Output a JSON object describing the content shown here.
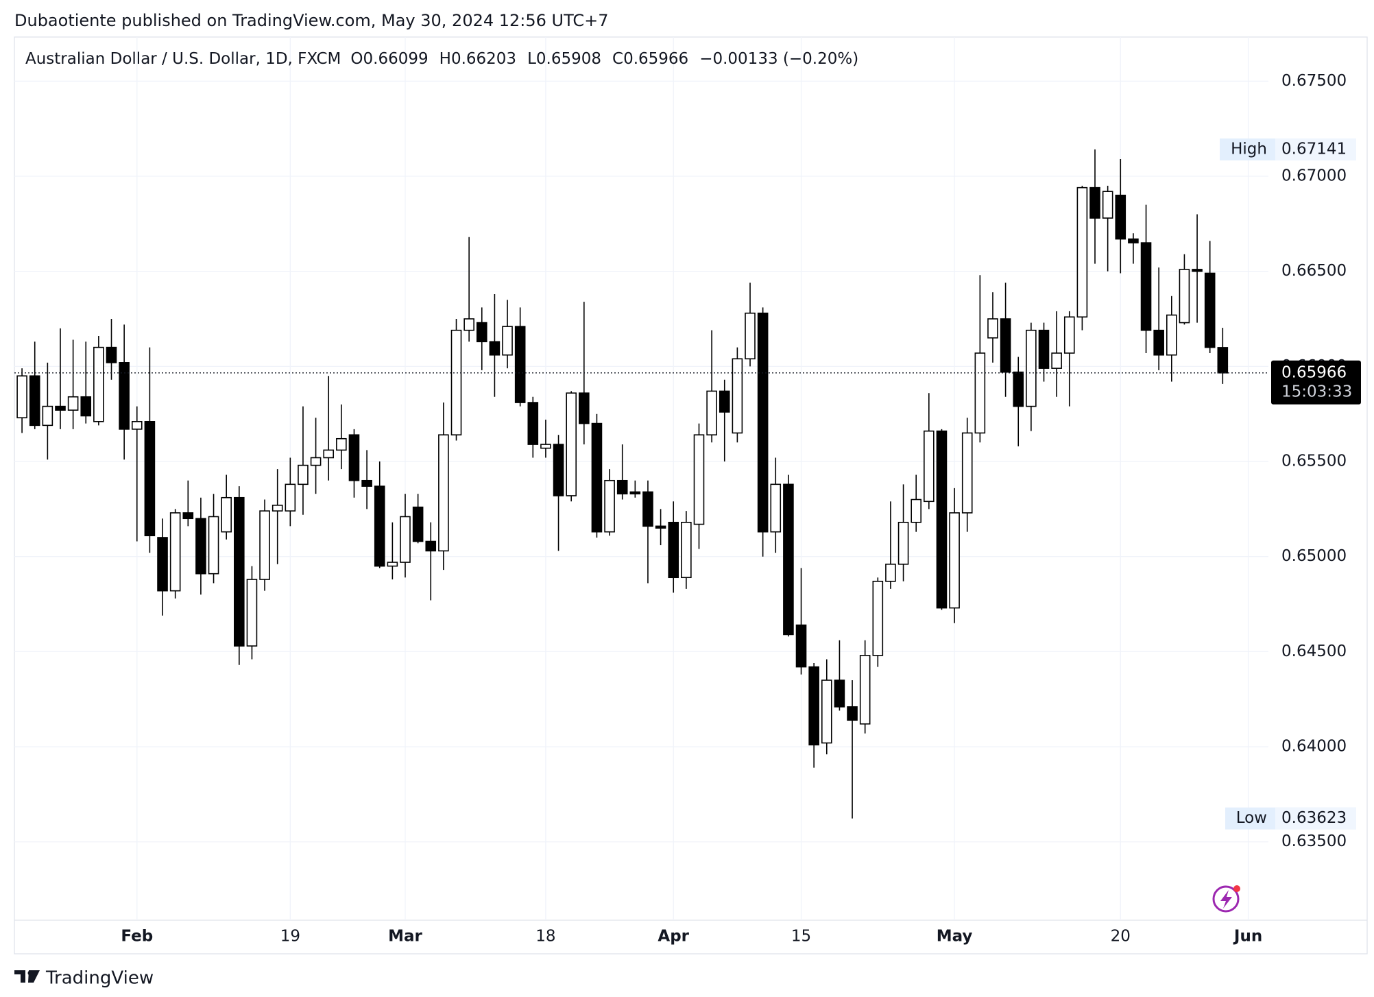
{
  "header": {
    "published": "Dubaotiente published on TradingView.com, May 30, 2024 12:56 UTC+7"
  },
  "legend": {
    "symbol": "Australian Dollar / U.S. Dollar, 1D, FXCM",
    "prefixes": [
      "O",
      "H",
      "L",
      "C"
    ],
    "change": "−0.00133 (−0.20%)"
  },
  "footer": {
    "brand": "TradingView"
  },
  "chart_data": {
    "type": "candlestick",
    "categories": [
      null,
      null,
      null,
      null,
      null,
      null,
      null,
      null,
      null,
      "Feb",
      null,
      null,
      null,
      null,
      null,
      null,
      null,
      null,
      null,
      null,
      null,
      "19",
      null,
      null,
      null,
      null,
      null,
      null,
      null,
      null,
      "Mar",
      null,
      null,
      null,
      null,
      null,
      null,
      null,
      null,
      null,
      null,
      "18",
      null,
      null,
      null,
      null,
      null,
      null,
      null,
      null,
      null,
      "Apr",
      null,
      null,
      null,
      null,
      null,
      null,
      null,
      null,
      null,
      "15",
      null,
      null,
      null,
      null,
      null,
      null,
      null,
      null,
      null,
      null,
      null,
      "May",
      null,
      null,
      null,
      null,
      null,
      null,
      null,
      null,
      null,
      null,
      null,
      null,
      "20",
      null,
      null,
      null,
      null,
      null,
      null,
      null,
      null,
      null,
      "Jun"
    ],
    "open": [
      0.6573,
      0.6595,
      0.6569,
      0.6579,
      0.6577,
      0.6584,
      0.6571,
      0.661,
      0.6602,
      0.6567,
      0.6571,
      0.651,
      0.6482,
      0.6523,
      0.652,
      0.6491,
      0.6513,
      0.6531,
      0.6453,
      0.6488,
      0.6524,
      0.6524,
      0.6538,
      0.6548,
      0.6552,
      0.6556,
      0.6564,
      0.654,
      0.6537,
      0.6495,
      0.6497,
      0.6526,
      0.6508,
      0.6503,
      0.6564,
      0.6619,
      0.6623,
      0.6613,
      0.6606,
      0.6621,
      0.6581,
      0.6557,
      0.6559,
      0.6532,
      0.6586,
      0.657,
      0.6513,
      0.654,
      0.6534,
      0.6534,
      0.6516,
      0.6518,
      0.6489,
      0.6517,
      0.6564,
      0.6587,
      0.6565,
      0.6604,
      0.6628,
      0.6513,
      0.6538,
      0.6464,
      0.6442,
      0.6402,
      0.6435,
      0.6421,
      0.6412,
      0.6448,
      0.6487,
      0.6496,
      0.6518,
      0.6529,
      0.6566,
      0.6473,
      0.6523,
      0.6565,
      0.6615,
      0.6625,
      0.6597,
      0.6579,
      0.6619,
      0.6599,
      0.6607,
      0.6626,
      0.6694,
      0.6678,
      0.669,
      0.6667,
      0.6665,
      0.6619,
      0.6606,
      0.6623,
      0.6651,
      0.6649,
      0.66099,
      null,
      null
    ],
    "high": [
      0.6599,
      0.6613,
      0.6602,
      0.662,
      0.6614,
      0.6613,
      0.6616,
      0.6625,
      0.6622,
      0.6579,
      0.661,
      0.652,
      0.6525,
      0.654,
      0.6531,
      0.6533,
      0.6543,
      0.6537,
      0.6495,
      0.653,
      0.6546,
      0.6552,
      0.6579,
      0.6573,
      0.6595,
      0.658,
      0.6567,
      0.6556,
      0.655,
      0.6518,
      0.6533,
      0.6533,
      0.6518,
      0.6581,
      0.6625,
      0.6668,
      0.6631,
      0.6638,
      0.6635,
      0.6631,
      0.6584,
      0.6572,
      0.6564,
      0.6587,
      0.6634,
      0.6575,
      0.6546,
      0.6559,
      0.654,
      0.654,
      0.6525,
      0.6529,
      0.6524,
      0.657,
      0.6619,
      0.6593,
      0.661,
      0.6644,
      0.6631,
      0.6552,
      0.6543,
      0.6494,
      0.6444,
      0.6446,
      0.6456,
      0.6435,
      0.6456,
      0.6489,
      0.6529,
      0.6538,
      0.6543,
      0.6586,
      0.6567,
      0.6536,
      0.6573,
      0.6648,
      0.6639,
      0.6644,
      0.6605,
      0.6623,
      0.6623,
      0.6629,
      0.6629,
      0.6695,
      0.67141,
      0.6695,
      0.6709,
      0.667,
      0.6685,
      0.6652,
      0.6637,
      0.6659,
      0.668,
      0.6666,
      0.66203,
      null,
      null
    ],
    "low": [
      0.6565,
      0.6567,
      0.6551,
      0.6567,
      0.6567,
      0.657,
      0.6569,
      0.6593,
      0.6551,
      0.6508,
      0.6502,
      0.6469,
      0.6478,
      0.6516,
      0.648,
      0.6486,
      0.6509,
      0.6443,
      0.6446,
      0.6482,
      0.6496,
      0.6516,
      0.6522,
      0.6533,
      0.654,
      0.6546,
      0.6531,
      0.6525,
      0.6494,
      0.6488,
      0.6489,
      0.6507,
      0.6477,
      0.6493,
      0.6561,
      0.6613,
      0.6598,
      0.6584,
      0.6599,
      0.6579,
      0.6552,
      0.6552,
      0.6503,
      0.6529,
      0.6559,
      0.651,
      0.6511,
      0.653,
      0.6531,
      0.6486,
      0.6506,
      0.6481,
      0.6483,
      0.6504,
      0.656,
      0.655,
      0.656,
      0.66,
      0.65,
      0.6502,
      0.6458,
      0.6438,
      0.6389,
      0.6396,
      0.6419,
      0.63623,
      0.6407,
      0.6442,
      0.6483,
      0.6487,
      0.6513,
      0.6525,
      0.6472,
      0.6465,
      0.6513,
      0.656,
      0.6602,
      0.6584,
      0.6558,
      0.6566,
      0.6592,
      0.6584,
      0.6579,
      0.6619,
      0.6654,
      0.665,
      0.6649,
      0.6654,
      0.6607,
      0.6598,
      0.6592,
      0.6622,
      0.6623,
      0.6607,
      0.65908,
      null,
      null
    ],
    "close": [
      0.6595,
      0.6569,
      0.6579,
      0.6577,
      0.6584,
      0.6574,
      0.661,
      0.6602,
      0.6567,
      0.6571,
      0.6511,
      0.6482,
      0.6523,
      0.652,
      0.6491,
      0.6521,
      0.6531,
      0.6453,
      0.6488,
      0.6524,
      0.6527,
      0.6538,
      0.6548,
      0.6552,
      0.6556,
      0.6562,
      0.654,
      0.6537,
      0.6495,
      0.6497,
      0.6521,
      0.6508,
      0.6503,
      0.6564,
      0.6619,
      0.6625,
      0.6613,
      0.6606,
      0.6621,
      0.6581,
      0.6559,
      0.6559,
      0.6532,
      0.6586,
      0.657,
      0.6513,
      0.654,
      0.6533,
      0.6533,
      0.6516,
      0.6515,
      0.6489,
      0.6518,
      0.6564,
      0.6587,
      0.6576,
      0.6604,
      0.6628,
      0.6513,
      0.6538,
      0.6459,
      0.6442,
      0.6401,
      0.6435,
      0.6421,
      0.6414,
      0.6448,
      0.6487,
      0.6496,
      0.6518,
      0.653,
      0.6566,
      0.6473,
      0.6523,
      0.6565,
      0.6607,
      0.6625,
      0.6597,
      0.6579,
      0.6619,
      0.6599,
      0.6607,
      0.6626,
      0.6694,
      0.6678,
      0.6692,
      0.6667,
      0.6665,
      0.6619,
      0.6606,
      0.6627,
      0.6651,
      0.665,
      0.661,
      0.65966,
      null,
      null
    ],
    "up_color": "#ffffff",
    "down_color": "#000000",
    "wick_color": "#000000",
    "ylim": [
      0.63088,
      0.67732
    ],
    "yticks": [
      {
        "value": 0.635,
        "label": "0.63500"
      },
      {
        "value": 0.64,
        "label": "0.64000"
      },
      {
        "value": 0.645,
        "label": "0.64500"
      },
      {
        "value": 0.65,
        "label": "0.65000"
      },
      {
        "value": 0.655,
        "label": "0.65500"
      },
      {
        "value": 0.66,
        "label": "0.66000"
      },
      {
        "value": 0.665,
        "label": "0.66500"
      },
      {
        "value": 0.67,
        "label": "0.67000"
      },
      {
        "value": 0.675,
        "label": "0.67500"
      }
    ],
    "grid": true,
    "high_label": "High",
    "low_label": "Low",
    "countdown": "15:03:33"
  }
}
